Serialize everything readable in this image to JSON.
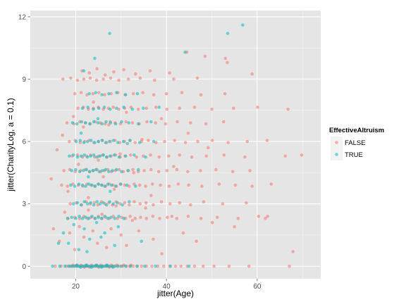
{
  "chart_data": {
    "type": "scatter",
    "xlabel": "jitter(Age)",
    "ylabel": "jitter(CharityLog, a = 0.1)",
    "xlim": [
      10,
      74
    ],
    "ylim": [
      -0.6,
      12.3
    ],
    "x_ticks": [
      20,
      40,
      60
    ],
    "x_tick_labels": [
      "20",
      "40",
      "60"
    ],
    "y_ticks": [
      0,
      3,
      6,
      9,
      12
    ],
    "y_tick_labels": [
      "0",
      "3",
      "6",
      "9",
      "12"
    ],
    "grid": true,
    "point_alpha": 0.55,
    "legend": {
      "title": "EffectiveAltruism",
      "position": "right",
      "items": [
        {
          "label": "FALSE",
          "color": "#F8766D"
        },
        {
          "label": "TRUE",
          "color": "#00BFC4"
        }
      ]
    },
    "series": [
      {
        "name": "FALSE",
        "color": "#F8766D",
        "x": [
          15.5,
          16.8,
          17.9,
          18.6,
          19.1,
          19.6,
          20.2,
          20.7,
          21.1,
          21.6,
          22.0,
          22.5,
          22.9,
          23.4,
          23.8,
          24.3,
          24.8,
          25.2,
          25.7,
          26.1,
          26.6,
          27.0,
          27.5,
          28.1,
          28.6,
          29.2,
          29.8,
          30.4,
          31.2,
          31.9,
          32.7,
          33.6,
          34.5,
          35.6,
          36.8,
          38.1,
          39.4,
          40.7,
          42.0,
          43.2,
          44.6,
          46.2,
          48.1,
          50.5,
          53.8,
          58.2,
          67.1,
          19.4,
          20.3,
          21.2,
          22.4,
          23.5,
          24.5,
          25.6,
          26.8,
          27.9,
          29.1,
          30.6,
          32.2,
          21.9,
          23.1,
          25.1,
          27.4,
          18.3,
          19.8,
          20.9,
          21.8,
          22.6,
          23.4,
          24.2,
          25.0,
          25.8,
          26.6,
          27.4,
          28.3,
          29.2,
          30.1,
          31.0,
          32.0,
          33.1,
          34.3,
          35.6,
          37.0,
          38.5,
          40.2,
          42.3,
          44.8,
          47.6,
          51.2,
          55.8,
          60.3,
          61.8,
          18.8,
          20.1,
          21.3,
          22.3,
          23.2,
          24.1,
          24.9,
          25.7,
          26.5,
          27.3,
          28.1,
          28.9,
          29.8,
          30.8,
          31.8,
          32.9,
          34.2,
          35.5,
          37.1,
          38.9,
          40.8,
          42.9,
          45.3,
          48.2,
          52.4,
          57.6,
          16.9,
          18.2,
          19.4,
          20.6,
          21.6,
          22.5,
          23.4,
          24.2,
          25.0,
          25.8,
          26.6,
          27.4,
          28.2,
          29.0,
          29.9,
          30.8,
          31.8,
          32.9,
          34.1,
          35.4,
          36.9,
          38.7,
          40.6,
          42.6,
          44.9,
          47.8,
          51.6,
          55.2,
          58.9,
          63.1,
          17.4,
          18.7,
          19.9,
          21.1,
          22.1,
          23.0,
          23.9,
          24.7,
          25.5,
          26.3,
          27.1,
          27.9,
          28.7,
          29.6,
          30.5,
          31.5,
          32.6,
          33.8,
          35.1,
          36.6,
          38.3,
          40.1,
          42.3,
          44.7,
          47.5,
          50.9,
          54.6,
          58.4,
          19.2,
          20.4,
          21.5,
          22.4,
          23.3,
          24.2,
          25.1,
          26.0,
          26.9,
          27.8,
          28.8,
          29.8,
          30.9,
          32.1,
          33.4,
          34.9,
          36.5,
          38.4,
          40.5,
          42.9,
          45.6,
          48.8,
          52.7,
          57.3,
          66.2,
          69.8,
          18.6,
          19.9,
          21.0,
          22.0,
          23.0,
          24.0,
          25.0,
          25.9,
          26.8,
          27.7,
          28.7,
          29.7,
          30.8,
          31.9,
          33.1,
          34.5,
          36.0,
          37.7,
          39.6,
          41.8,
          44.2,
          46.9,
          50.1,
          53.6,
          57.8,
          62.2,
          18.1,
          19.6,
          20.9,
          22.1,
          23.2,
          24.3,
          25.4,
          26.5,
          27.6,
          28.7,
          29.9,
          31.1,
          32.5,
          34.0,
          35.7,
          37.6,
          39.8,
          42.4,
          45.3,
          48.7,
          52.6,
          20.5,
          21.7,
          22.8,
          23.9,
          25.0,
          26.1,
          27.2,
          28.3,
          29.5,
          30.8,
          32.2,
          33.8,
          35.6,
          37.7,
          40.1,
          42.9,
          46.2,
          50.0,
          54.8,
          60.1,
          66.8,
          19.8,
          21.2,
          22.5,
          23.8,
          25.1,
          26.4,
          27.8,
          29.3,
          30.9,
          32.7,
          34.8,
          37.2,
          40.0,
          43.4,
          47.6,
          52.9,
          17.2,
          18.9,
          20.4,
          21.8,
          23.2,
          24.6,
          26.1,
          27.7,
          29.5,
          31.6,
          34.2,
          37.4,
          41.6,
          46.8,
          21.4,
          23.0,
          24.7,
          26.5,
          28.4,
          30.6,
          33.2,
          36.4,
          40.7,
          44.5,
          48.5,
          53.0,
          58.9,
          15.1,
          16.4,
          17.6,
          18.7,
          19.8,
          20.8,
          21.8,
          22.8,
          23.8,
          24.8,
          25.8,
          26.8,
          27.8,
          28.9,
          30.0,
          31.2,
          32.5,
          33.9,
          35.4,
          37.1,
          39.0,
          41.2,
          43.7,
          46.6,
          50.1,
          55.0,
          62.3,
          67.9,
          14.6,
          15.9,
          17.1,
          18.3,
          19.5,
          20.6,
          21.7,
          22.8,
          23.9,
          25.0,
          26.1,
          27.3,
          28.5,
          29.8,
          31.2,
          32.8,
          34.6,
          36.6,
          38.9,
          41.6,
          44.8,
          49.2,
          53.4
        ],
        "y": [
          0.0,
          0.0,
          0.0,
          0.0,
          0.0,
          0.0,
          0.0,
          0.0,
          0.0,
          0.0,
          0.0,
          0.0,
          0.0,
          0.0,
          0.0,
          0.0,
          0.0,
          0.0,
          0.0,
          0.0,
          0.0,
          0.0,
          0.0,
          0.0,
          0.0,
          0.0,
          0.0,
          0.0,
          0.0,
          0.0,
          0.0,
          0.0,
          0.0,
          0.0,
          0.0,
          0.0,
          0.0,
          0.0,
          0.0,
          0.0,
          0.0,
          0.0,
          0.0,
          0.0,
          0.0,
          0.0,
          0.0,
          0.05,
          0.05,
          0.05,
          0.05,
          0.05,
          0.05,
          0.05,
          0.05,
          0.05,
          0.05,
          0.05,
          0.05,
          -0.05,
          -0.05,
          -0.05,
          -0.05,
          2.3,
          2.35,
          2.3,
          2.4,
          2.3,
          2.35,
          2.3,
          2.4,
          2.3,
          2.35,
          2.3,
          2.4,
          2.3,
          2.35,
          2.3,
          2.4,
          2.3,
          2.35,
          2.3,
          2.4,
          2.3,
          2.35,
          2.3,
          2.4,
          2.3,
          2.35,
          2.3,
          2.4,
          2.3,
          3.0,
          3.05,
          2.95,
          3.1,
          3.0,
          3.05,
          2.95,
          3.1,
          3.0,
          3.05,
          2.95,
          3.1,
          3.0,
          3.05,
          2.95,
          3.1,
          3.0,
          3.05,
          2.95,
          3.1,
          3.0,
          3.05,
          2.95,
          3.1,
          3.0,
          3.05,
          3.9,
          3.85,
          3.95,
          3.9,
          3.85,
          3.95,
          3.9,
          3.85,
          3.95,
          3.9,
          3.85,
          3.95,
          3.9,
          3.85,
          3.95,
          3.9,
          3.85,
          3.95,
          3.9,
          3.85,
          3.95,
          3.9,
          3.85,
          3.95,
          3.9,
          3.85,
          3.95,
          3.9,
          3.85,
          3.95,
          4.6,
          4.65,
          4.55,
          4.6,
          4.65,
          4.55,
          4.6,
          4.65,
          4.55,
          4.6,
          4.65,
          4.55,
          4.6,
          4.65,
          4.55,
          4.6,
          4.65,
          4.55,
          4.6,
          4.65,
          4.55,
          4.6,
          4.65,
          4.55,
          4.6,
          4.65,
          4.55,
          4.6,
          5.3,
          5.35,
          5.25,
          5.3,
          5.35,
          5.25,
          5.3,
          5.35,
          5.25,
          5.3,
          5.35,
          5.25,
          5.3,
          5.35,
          5.25,
          5.3,
          5.35,
          5.25,
          5.3,
          5.35,
          5.25,
          5.3,
          5.35,
          5.25,
          5.3,
          5.35,
          6.0,
          6.05,
          5.95,
          6.0,
          6.05,
          5.95,
          6.0,
          6.05,
          5.95,
          6.0,
          6.05,
          5.95,
          6.0,
          6.05,
          5.95,
          6.0,
          6.05,
          5.95,
          6.0,
          6.05,
          5.95,
          6.0,
          6.05,
          5.95,
          6.0,
          6.05,
          6.9,
          6.85,
          6.95,
          6.9,
          6.85,
          6.95,
          6.9,
          6.85,
          6.95,
          6.9,
          6.85,
          6.95,
          6.9,
          6.85,
          6.95,
          6.9,
          6.85,
          6.95,
          6.9,
          6.85,
          6.95,
          7.6,
          7.65,
          7.55,
          7.6,
          7.65,
          7.55,
          7.6,
          7.65,
          7.55,
          7.6,
          7.65,
          7.55,
          7.6,
          7.65,
          7.55,
          7.6,
          7.65,
          7.55,
          7.6,
          7.65,
          7.55,
          8.3,
          8.35,
          8.25,
          8.3,
          8.35,
          8.25,
          8.3,
          8.35,
          8.25,
          8.3,
          8.35,
          8.25,
          8.3,
          8.35,
          8.25,
          8.3,
          9.0,
          9.05,
          8.95,
          9.0,
          9.05,
          8.95,
          9.0,
          9.05,
          8.95,
          9.0,
          9.05,
          8.95,
          9.0,
          9.05,
          9.4,
          9.3,
          9.5,
          9.2,
          9.35,
          9.45,
          9.25,
          9.4,
          9.3,
          10.3,
          10.1,
          10.0,
          9.25,
          1.8,
          1.2,
          2.6,
          1.6,
          0.8,
          1.9,
          1.4,
          2.7,
          1.7,
          1.1,
          2.5,
          0.9,
          1.8,
          2.9,
          1.5,
          1.0,
          2.2,
          1.7,
          2.8,
          1.3,
          0.6,
          2.4,
          1.6,
          1.2,
          2.1,
          1.9,
          2.4,
          0.7,
          4.2,
          5.6,
          6.3,
          3.6,
          7.2,
          4.9,
          6.7,
          3.3,
          7.9,
          5.1,
          4.3,
          6.8,
          3.7,
          5.4,
          7.4,
          4.5,
          6.1,
          3.4,
          7.1,
          4.8,
          6.4,
          5.7,
          9.8
        ]
      },
      {
        "name": "TRUE",
        "color": "#00BFC4",
        "x": [
          14.9,
          16.5,
          17.6,
          18.4,
          18.9,
          19.4,
          19.9,
          20.4,
          20.9,
          21.4,
          21.9,
          22.4,
          22.9,
          23.4,
          23.9,
          24.4,
          24.9,
          25.4,
          25.9,
          26.4,
          26.9,
          27.4,
          28.0,
          28.6,
          29.3,
          30.1,
          31.0,
          32.1,
          33.5,
          35.2,
          37.6,
          40.9,
          45.0,
          20.2,
          21.1,
          22.3,
          23.5,
          24.6,
          25.7,
          26.9,
          28.2,
          18.2,
          19.1,
          20.0,
          20.8,
          21.5,
          22.2,
          22.9,
          23.6,
          24.3,
          25.0,
          25.7,
          26.4,
          27.1,
          27.8,
          28.6,
          29.5,
          30.6,
          19.5,
          20.4,
          21.2,
          21.9,
          22.6,
          23.3,
          24.0,
          24.7,
          25.4,
          26.1,
          26.8,
          27.5,
          28.3,
          29.2,
          30.3,
          31.8,
          18.9,
          19.8,
          20.7,
          21.5,
          22.2,
          22.9,
          23.6,
          24.3,
          25.0,
          25.7,
          26.4,
          27.1,
          27.9,
          28.8,
          29.9,
          31.3,
          33.2,
          19.1,
          20.0,
          20.9,
          21.7,
          22.4,
          23.1,
          23.8,
          24.5,
          25.2,
          25.9,
          26.6,
          27.3,
          28.1,
          29.0,
          30.1,
          31.6,
          33.8,
          18.6,
          19.5,
          20.4,
          21.2,
          21.9,
          22.6,
          23.3,
          24.0,
          24.7,
          25.4,
          26.1,
          26.8,
          27.6,
          28.5,
          29.6,
          31.0,
          32.9,
          35.4,
          20.1,
          21.0,
          21.8,
          22.6,
          23.4,
          24.2,
          25.0,
          25.8,
          26.6,
          27.4,
          28.3,
          29.3,
          30.5,
          32.0,
          34.1,
          37.2,
          19.3,
          20.3,
          21.3,
          22.2,
          23.1,
          24.0,
          24.9,
          25.8,
          26.7,
          27.7,
          28.8,
          30.1,
          31.7,
          33.8,
          36.6,
          21.5,
          22.7,
          23.9,
          25.1,
          26.3,
          27.6,
          29.0,
          30.6,
          32.5,
          34.9,
          38.4,
          23.0,
          24.4,
          25.8,
          27.3,
          29.0,
          31.0,
          33.6,
          44.1,
          53.5,
          56.8,
          21.8,
          24.2,
          27.5,
          17.3,
          18.4,
          19.6,
          20.7,
          21.9,
          23.1,
          24.6,
          26.4,
          28.6,
          16.2,
          22.5,
          25.6,
          29.4,
          34.5,
          21.2,
          22.8,
          24.9,
          27.6,
          31.4
        ],
        "y": [
          0.0,
          0.0,
          0.0,
          0.0,
          0.0,
          0.0,
          0.0,
          0.0,
          0.0,
          0.0,
          0.0,
          0.0,
          0.0,
          0.0,
          0.0,
          0.0,
          0.0,
          0.0,
          0.0,
          0.0,
          0.0,
          0.0,
          0.0,
          0.0,
          0.0,
          0.0,
          0.0,
          0.0,
          0.0,
          0.0,
          0.0,
          0.0,
          0.0,
          0.05,
          -0.05,
          0.05,
          -0.05,
          0.05,
          -0.05,
          0.05,
          -0.05,
          2.3,
          2.35,
          2.3,
          2.4,
          2.3,
          2.35,
          2.3,
          2.4,
          2.3,
          2.35,
          2.3,
          2.4,
          2.3,
          2.35,
          2.3,
          2.4,
          2.3,
          3.0,
          3.05,
          2.95,
          3.1,
          3.0,
          3.05,
          2.95,
          3.1,
          3.0,
          3.05,
          2.95,
          3.1,
          3.0,
          3.05,
          2.95,
          3.1,
          3.9,
          3.85,
          3.95,
          3.9,
          3.85,
          3.95,
          3.9,
          3.85,
          3.95,
          3.9,
          3.85,
          3.95,
          3.9,
          3.85,
          3.95,
          3.9,
          3.85,
          4.6,
          4.65,
          4.55,
          4.6,
          4.65,
          4.55,
          4.6,
          4.65,
          4.55,
          4.6,
          4.65,
          4.55,
          4.6,
          4.65,
          4.55,
          4.6,
          4.65,
          5.3,
          5.35,
          5.25,
          5.3,
          5.35,
          5.25,
          5.3,
          5.35,
          5.25,
          5.3,
          5.35,
          5.25,
          5.3,
          5.35,
          5.25,
          5.3,
          5.35,
          5.25,
          6.0,
          6.05,
          5.95,
          6.0,
          6.05,
          5.95,
          6.0,
          6.05,
          5.95,
          6.0,
          6.05,
          5.95,
          6.0,
          6.05,
          5.95,
          6.0,
          6.9,
          6.85,
          6.95,
          6.9,
          6.85,
          6.95,
          6.9,
          6.85,
          6.95,
          6.9,
          6.85,
          6.95,
          6.9,
          6.85,
          6.95,
          7.6,
          7.65,
          7.55,
          7.6,
          7.65,
          7.55,
          7.6,
          7.65,
          7.55,
          7.6,
          7.65,
          8.3,
          8.35,
          8.25,
          8.3,
          8.35,
          8.25,
          8.3,
          10.3,
          11.2,
          11.6,
          9.4,
          10.0,
          11.2,
          1.6,
          1.1,
          2.0,
          0.8,
          1.8,
          1.3,
          2.1,
          1.6,
          1.0,
          1.1,
          0.7,
          1.4,
          1.9,
          1.2,
          6.4,
          4.3,
          7.1,
          3.6,
          5.9
        ]
      }
    ]
  }
}
